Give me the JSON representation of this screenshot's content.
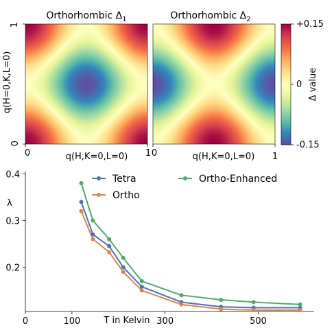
{
  "chart_data": [
    {
      "type": "heatmap",
      "title": "Orthorhombic Δ",
      "title_sub": "1",
      "xlabel": "q(H,K=0,L=0)",
      "ylabel": "q(H=0,K,L=0)",
      "xticks": [
        "0",
        "1"
      ],
      "yticks": [
        "0",
        "1"
      ],
      "xlim": [
        0,
        1
      ],
      "ylim": [
        0,
        1
      ],
      "pattern": "d_x2-y2_like",
      "colormap": "Spectral_r"
    },
    {
      "type": "heatmap",
      "title": "Orthorhombic Δ",
      "title_sub": "2",
      "xlabel": "q(H,K=0,L=0)",
      "xticks": [
        "0",
        "1"
      ],
      "xlim": [
        0,
        1
      ],
      "ylim": [
        0,
        1
      ],
      "pattern": "d_x2-y2_like_shifted",
      "colormap": "Spectral_r",
      "colorbar": {
        "label": "Δ value",
        "ticks": [
          "+0.15",
          "0",
          "-0.15"
        ],
        "range": [
          -0.15,
          0.15
        ],
        "colors": [
          "#5e4fa2",
          "#3288bd",
          "#66c2a5",
          "#abdda4",
          "#e6f598",
          "#ffffbf",
          "#fee08b",
          "#fdae61",
          "#f46d43",
          "#d53e4f",
          "#9e0142"
        ]
      }
    },
    {
      "type": "line",
      "xlabel": "T in Kelvin",
      "ylabel": "λ",
      "xticks": [
        "0",
        "100",
        "300",
        "500"
      ],
      "yticks": [
        "0.2",
        "0.3",
        "0.4"
      ],
      "xlim": [
        0,
        620
      ],
      "ylim": [
        0.105,
        0.405
      ],
      "legend_position": "top-right",
      "x": [
        120,
        145,
        180,
        210,
        250,
        335,
        420,
        490,
        590
      ],
      "series": [
        {
          "name": "Tetra",
          "color": "#4c72b0",
          "values": [
            0.34,
            0.27,
            0.245,
            0.2,
            0.158,
            0.125,
            0.115,
            0.113,
            0.113
          ]
        },
        {
          "name": "Ortho",
          "color": "#dd8452",
          "values": [
            0.32,
            0.26,
            0.232,
            0.19,
            0.15,
            0.12,
            0.11,
            0.108,
            0.108
          ]
        },
        {
          "name": "Ortho-Enhanced",
          "color": "#55a868",
          "values": [
            0.38,
            0.3,
            0.26,
            0.22,
            0.17,
            0.14,
            0.13,
            0.125,
            0.12
          ]
        }
      ]
    }
  ]
}
